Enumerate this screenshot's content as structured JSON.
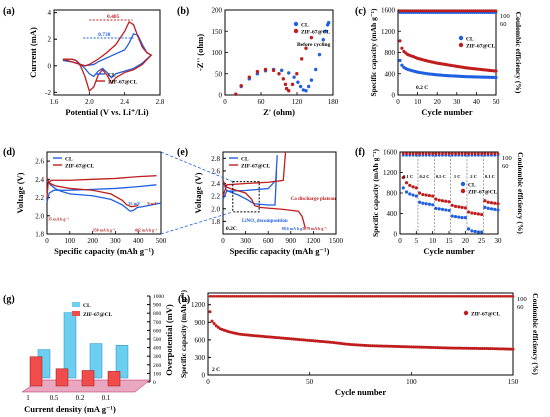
{
  "colors": {
    "cl": "#1f5fe0",
    "zif": "#c01d1d",
    "grid": "#000000"
  },
  "chart_data": [
    {
      "panel": "(a)",
      "type": "line",
      "xlabel": "Potential (V vs. Li⁺/Li)",
      "ylabel": "Current (mA)",
      "xlim": [
        1.6,
        2.8
      ],
      "ylim": [
        -2.2,
        4.2
      ],
      "xticks": [
        "1.6",
        "2.0",
        "2.4",
        "2.8"
      ],
      "yticks": [
        "-2",
        "0",
        "2",
        "4"
      ],
      "annotations": [
        "0.485",
        "0.738"
      ],
      "legend": [
        "CL",
        "ZIF-67@CL"
      ],
      "series": [
        {
          "name": "CL",
          "x": [
            1.7,
            1.8,
            1.9,
            1.95,
            2.0,
            2.05,
            2.1,
            2.2,
            2.3,
            2.4,
            2.45,
            2.5,
            2.55,
            2.6,
            2.65,
            2.7,
            2.6,
            2.5,
            2.4,
            2.3,
            2.25,
            2.2,
            2.15,
            2.1,
            2.05,
            2.0,
            1.95,
            1.9,
            1.85,
            1.8,
            1.75,
            1.7
          ],
          "y": [
            0.4,
            0.3,
            0.1,
            0.0,
            0.05,
            0.1,
            0.3,
            0.6,
            0.9,
            1.2,
            1.7,
            2.4,
            2.3,
            1.6,
            1.0,
            0.8,
            0.2,
            -0.2,
            -0.4,
            -0.6,
            -0.9,
            -0.5,
            -0.2,
            -0.4,
            -0.8,
            -0.6,
            -0.2,
            0.1,
            0.4,
            0.5,
            0.5,
            0.4
          ]
        },
        {
          "name": "ZIF-67@CL",
          "x": [
            1.7,
            1.8,
            1.9,
            1.95,
            2.0,
            2.05,
            2.1,
            2.2,
            2.3,
            2.35,
            2.4,
            2.45,
            2.5,
            2.55,
            2.6,
            2.65,
            2.7,
            2.6,
            2.5,
            2.4,
            2.3,
            2.25,
            2.2,
            2.15,
            2.1,
            2.05,
            2.0,
            1.95,
            1.9,
            1.85,
            1.8,
            1.75,
            1.7
          ],
          "y": [
            0.5,
            0.3,
            0.1,
            0.0,
            0.1,
            0.3,
            0.5,
            1.0,
            1.6,
            2.1,
            2.6,
            3.3,
            3.1,
            2.2,
            1.4,
            1.0,
            0.8,
            0.1,
            -0.3,
            -0.5,
            -0.9,
            -1.3,
            -0.7,
            -0.3,
            -0.7,
            -1.6,
            -1.9,
            -0.8,
            0.0,
            0.4,
            0.5,
            0.5,
            0.5
          ]
        }
      ]
    },
    {
      "panel": "(b)",
      "type": "scatter",
      "xlabel": "Z' (ohm)",
      "ylabel": "-Z'' (ohm)",
      "xlim": [
        0,
        200
      ],
      "ylim": [
        0,
        200
      ],
      "xticks": [
        "0",
        "60",
        "120",
        "180"
      ],
      "yticks": [
        "0",
        "50",
        "100",
        "150",
        "200"
      ],
      "annotations": [
        "Before cycling"
      ],
      "legend": [
        "CL",
        "ZIF-67@CL"
      ],
      "series": [
        {
          "name": "CL",
          "x": [
            20,
            30,
            45,
            60,
            75,
            90,
            105,
            118,
            128,
            135,
            140,
            145,
            150,
            155,
            160,
            168,
            175,
            182,
            186,
            190,
            192
          ],
          "y": [
            2,
            20,
            38,
            50,
            57,
            60,
            58,
            52,
            42,
            30,
            20,
            12,
            10,
            20,
            35,
            60,
            95,
            130,
            150,
            165,
            170
          ]
        },
        {
          "name": "ZIF-67@CL",
          "x": [
            20,
            30,
            45,
            60,
            75,
            90,
            100,
            108,
            112,
            114,
            118,
            125,
            133,
            142,
            150,
            160
          ],
          "y": [
            2,
            22,
            42,
            55,
            60,
            58,
            50,
            38,
            25,
            15,
            10,
            25,
            50,
            85,
            110,
            135
          ]
        }
      ]
    },
    {
      "panel": "(c)",
      "type": "scatter",
      "xlabel": "Cycle number",
      "ylabel": "Specific capacity (mAh g⁻¹)",
      "ylabel2": "Coulombic efficiency (%)",
      "xlim": [
        0,
        50
      ],
      "ylim": [
        0,
        1600
      ],
      "y2lim": [
        0,
        100
      ],
      "xticks": [
        "0",
        "10",
        "20",
        "30",
        "40",
        "50"
      ],
      "yticks": [
        "0",
        "400",
        "800",
        "1200",
        "1600"
      ],
      "y2ticks": [
        "60",
        "100"
      ],
      "annotations": [
        "0.2 C"
      ],
      "legend": [
        "CL",
        "ZIF-67@CL"
      ],
      "series": [
        {
          "name": "CL",
          "x": [
            1,
            2,
            3,
            5,
            8,
            10,
            15,
            20,
            25,
            30,
            35,
            40,
            45,
            50
          ],
          "y": [
            650,
            560,
            520,
            480,
            450,
            430,
            400,
            380,
            365,
            355,
            345,
            340,
            335,
            330
          ]
        },
        {
          "name": "ZIF-67@CL",
          "x": [
            1,
            2,
            3,
            5,
            8,
            10,
            15,
            20,
            25,
            30,
            35,
            40,
            45,
            50
          ],
          "y": [
            1020,
            880,
            820,
            760,
            720,
            690,
            640,
            600,
            570,
            540,
            510,
            490,
            470,
            450
          ]
        },
        {
          "name": "CL CE",
          "x": [
            1,
            50
          ],
          "y": [
            97,
            98
          ]
        },
        {
          "name": "ZIF-67@CL CE",
          "x": [
            1,
            50
          ],
          "y": [
            98,
            99
          ]
        }
      ]
    },
    {
      "panel": "(d)",
      "type": "line",
      "xlabel": "Specific capacity (mAh g⁻¹)",
      "ylabel": "Voltage (V)",
      "xlim": [
        0,
        500
      ],
      "ylim": [
        1.8,
        2.7
      ],
      "xticks": [
        "0",
        "100",
        "200",
        "300",
        "400",
        "500"
      ],
      "yticks": [
        "1.8",
        "2.0",
        "2.2",
        "2.4",
        "2.6"
      ],
      "annotations": [
        "35 mV",
        "9 mV",
        "35 mA h g⁻¹",
        "350 mA h g⁻¹",
        "402 mA h g⁻¹"
      ],
      "legend": [
        "CL",
        "ZIF-67@CL"
      ]
    },
    {
      "panel": "(e)",
      "type": "line",
      "xlabel": "Specific capacity (mAh g⁻¹)",
      "ylabel": "Voltage (V)",
      "xlim": [
        0,
        1500
      ],
      "ylim": [
        1.6,
        2.9
      ],
      "xticks": [
        "0",
        "300",
        "600",
        "900",
        "1200",
        "1500"
      ],
      "yticks": [
        "1.8",
        "2.0",
        "2.2",
        "2.4",
        "2.6",
        "2.8"
      ],
      "annotations": [
        "0.2C",
        "LiNO₃ decomposition",
        "Co discharge plateau",
        "88.6 mA h g⁻¹",
        "1079 mA h g⁻¹"
      ],
      "legend": [
        "CL",
        "ZIF-67@CL"
      ]
    },
    {
      "panel": "(f)",
      "type": "scatter",
      "xlabel": "Cycle number",
      "ylabel": "Specific capacity (mAh g⁻¹)",
      "ylabel2": "Coulombic efficiency (%)",
      "xlim": [
        0,
        30
      ],
      "ylim": [
        0,
        1600
      ],
      "y2lim": [
        0,
        100
      ],
      "xticks": [
        "0",
        "5",
        "10",
        "15",
        "20",
        "25",
        "30"
      ],
      "yticks": [
        "0",
        "400",
        "800",
        "1200",
        "1600"
      ],
      "y2ticks": [
        "60",
        "100"
      ],
      "annotations": [
        "0.1 C",
        "0.2 C",
        "0.5 C",
        "1 C",
        "2 C",
        "0.1 C"
      ],
      "legend": [
        "CL",
        "ZIF-67@CL"
      ],
      "series": [
        {
          "name": "CL",
          "x": [
            1,
            2,
            3,
            4,
            5,
            6,
            7,
            8,
            9,
            10,
            11,
            12,
            13,
            14,
            15,
            16,
            17,
            18,
            19,
            20,
            21,
            22,
            23,
            24,
            25,
            26,
            27,
            28,
            29,
            30
          ],
          "y": [
            900,
            820,
            780,
            760,
            740,
            620,
            600,
            590,
            580,
            570,
            500,
            490,
            480,
            470,
            460,
            350,
            340,
            330,
            320,
            320,
            100,
            60,
            50,
            40,
            40,
            520,
            500,
            490,
            480,
            470
          ]
        },
        {
          "name": "ZIF-67@CL",
          "x": [
            1,
            2,
            3,
            4,
            5,
            6,
            7,
            8,
            9,
            10,
            11,
            12,
            13,
            14,
            15,
            16,
            17,
            18,
            19,
            20,
            21,
            22,
            23,
            24,
            25,
            26,
            27,
            28,
            29,
            30
          ],
          "y": [
            1100,
            1000,
            950,
            920,
            900,
            800,
            770,
            760,
            750,
            740,
            680,
            660,
            650,
            640,
            630,
            560,
            540,
            530,
            520,
            510,
            430,
            410,
            400,
            390,
            380,
            650,
            620,
            610,
            600,
            590
          ]
        }
      ]
    },
    {
      "panel": "(g)",
      "type": "bar",
      "xlabel": "Current density (mA g⁻¹)",
      "ylabel": "Overpotential (mV)",
      "categories": [
        "1",
        "0.5",
        "0.2",
        "0.1"
      ],
      "yticks": [
        "0",
        "100",
        "200",
        "300",
        "400",
        "500",
        "600",
        "700",
        "800",
        "900",
        "1000"
      ],
      "ylim": [
        0,
        1000
      ],
      "legend": [
        "CL",
        "ZIF-67@CL"
      ],
      "series": [
        {
          "name": "CL",
          "values": [
            330,
            760,
            400,
            380
          ]
        },
        {
          "name": "ZIF-67@CL",
          "values": [
            340,
            200,
            180,
            170
          ]
        }
      ]
    },
    {
      "panel": "(h)",
      "type": "scatter",
      "xlabel": "Cycle number",
      "ylabel": "Specific capacity (mAh g⁻¹)",
      "ylabel2": "Coulombic efficiency (%)",
      "xlim": [
        0,
        150
      ],
      "ylim": [
        0,
        1400
      ],
      "y2lim": [
        0,
        100
      ],
      "xticks": [
        "0",
        "50",
        "100",
        "150"
      ],
      "yticks": [
        "0",
        "300",
        "600",
        "900",
        "1200"
      ],
      "y2ticks": [
        "60",
        "100"
      ],
      "annotations": [
        "2 C"
      ],
      "legend": [
        "ZIF-67@CL"
      ],
      "series": [
        {
          "name": "ZIF-67@CL",
          "x": [
            1,
            2,
            4,
            6,
            10,
            15,
            20,
            30,
            40,
            50,
            60,
            70,
            80,
            90,
            100,
            110,
            120,
            130,
            140,
            150
          ],
          "y": [
            1080,
            920,
            840,
            790,
            740,
            700,
            680,
            650,
            620,
            590,
            560,
            520,
            500,
            490,
            480,
            470,
            460,
            455,
            450,
            440
          ]
        },
        {
          "name": "ZIF-67@CL CE",
          "x": [
            1,
            150
          ],
          "y": [
            98,
            99
          ]
        }
      ]
    }
  ]
}
